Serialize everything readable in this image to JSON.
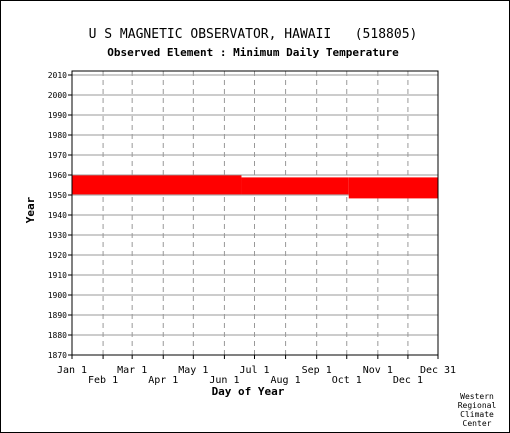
{
  "chart_data": {
    "type": "bar",
    "title": "U S MAGNETIC OBSERVATOR, HAWAII   (518805)",
    "subtitle": "Observed Element : Minimum Daily Temperature",
    "xlabel": "Day of Year",
    "ylabel": "Year",
    "xlim": [
      1,
      366
    ],
    "ylim": [
      1870,
      2012
    ],
    "grid": true,
    "x_ticks_row1": [
      {
        "label": "Jan 1",
        "day": 1
      },
      {
        "label": "Mar 1",
        "day": 61
      },
      {
        "label": "May 1",
        "day": 122
      },
      {
        "label": "Jul 1",
        "day": 183
      },
      {
        "label": "Sep 1",
        "day": 245
      },
      {
        "label": "Nov 1",
        "day": 306
      },
      {
        "label": "Dec 31",
        "day": 366
      }
    ],
    "x_ticks_row2": [
      {
        "label": "Feb 1",
        "day": 32
      },
      {
        "label": "Apr 1",
        "day": 92
      },
      {
        "label": "Jun 1",
        "day": 153
      },
      {
        "label": "Aug 1",
        "day": 214
      },
      {
        "label": "Oct 1",
        "day": 275
      },
      {
        "label": "Dec 1",
        "day": 336
      }
    ],
    "y_ticks": [
      2010,
      2000,
      1990,
      1980,
      1970,
      1960,
      1950,
      1940,
      1930,
      1920,
      1910,
      1900,
      1890,
      1880,
      1870
    ],
    "series": [
      {
        "color": "#ff0000",
        "segments": [
          {
            "x_start": 1,
            "x_end": 170,
            "y_start": 1950.3,
            "y_end": 1959.8
          },
          {
            "x_start": 170,
            "x_end": 277,
            "y_start": 1950.3,
            "y_end": 1958.8
          },
          {
            "x_start": 277,
            "x_end": 366,
            "y_start": 1948.3,
            "y_end": 1958.8
          }
        ]
      }
    ]
  },
  "credit": [
    "Western",
    "Regional",
    "Climate",
    "Center"
  ]
}
